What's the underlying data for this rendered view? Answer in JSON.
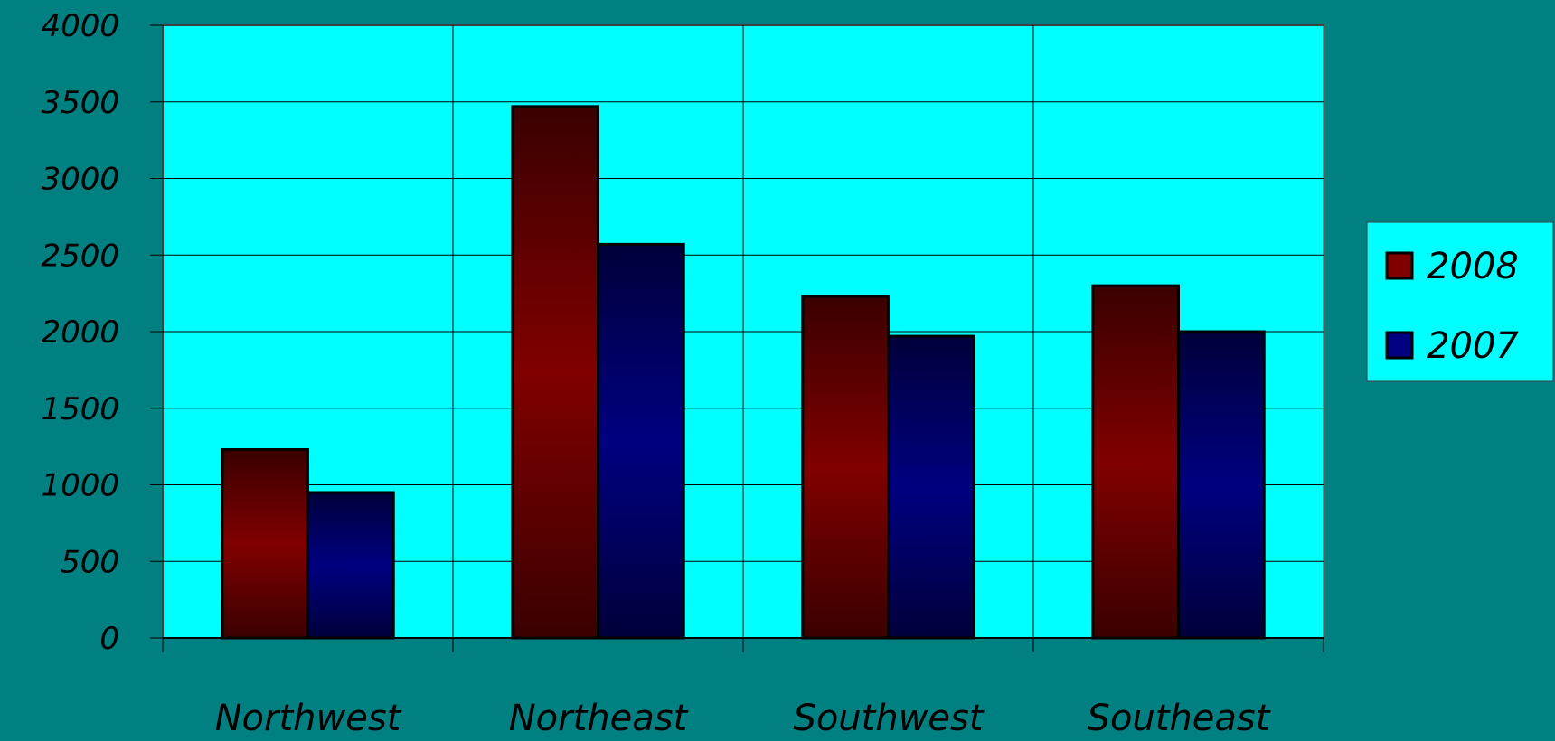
{
  "chart_data": {
    "type": "bar",
    "categories": [
      "Northwest",
      "Northeast",
      "Southwest",
      "Southeast"
    ],
    "series": [
      {
        "name": "2008",
        "values": [
          1230,
          3470,
          2230,
          2300
        ],
        "color": "#800000"
      },
      {
        "name": "2007",
        "values": [
          950,
          2570,
          1970,
          2000
        ],
        "color": "#000080"
      }
    ],
    "ylim": [
      0,
      4000
    ],
    "y_ticks": [
      "0",
      "500",
      "1000",
      "1500",
      "2000",
      "2500",
      "3000",
      "3500",
      "4000"
    ],
    "title": "",
    "xlabel": "",
    "ylabel": "",
    "grid": true,
    "legend_position": "right",
    "colors": {
      "background": "#008080",
      "plot_area": "#00FFFF",
      "legend_box": "#00FFFF",
      "gridline": "#000000"
    }
  }
}
